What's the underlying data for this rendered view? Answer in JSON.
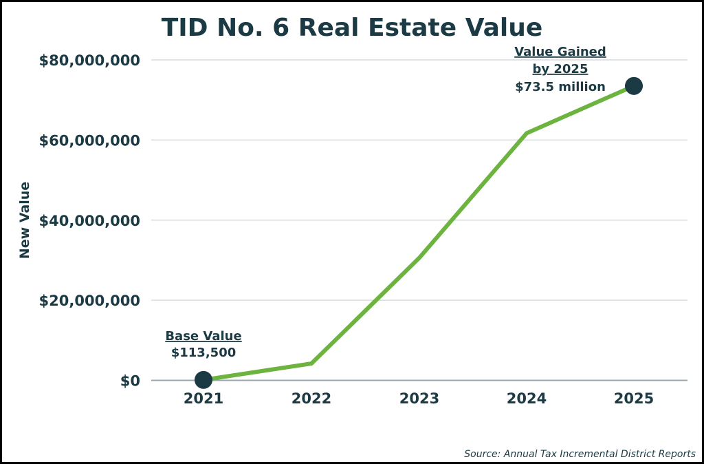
{
  "chart_data": {
    "type": "line",
    "title": "TID No. 6 Real Estate Value",
    "xlabel": "",
    "ylabel": "New Value",
    "categories": [
      "2021",
      "2022",
      "2023",
      "2024",
      "2025"
    ],
    "series": [
      {
        "name": "New Value",
        "values": [
          113500,
          4200000,
          30600000,
          61700000,
          73500000
        ]
      }
    ],
    "ylim": [
      0,
      80000000
    ],
    "yticks": [
      0,
      20000000,
      40000000,
      60000000,
      80000000
    ],
    "ytick_labels": [
      "$0",
      "$20,000,000",
      "$40,000,000",
      "$60,000,000",
      "$80,000,000"
    ],
    "grid": true,
    "annotations": {
      "start": {
        "title": "Base Value",
        "value": "$113,500"
      },
      "end": {
        "title_line1": "Value Gained",
        "title_line2": "by 2025",
        "value": "$73.5 million"
      }
    },
    "source": "Source: Annual Tax Incremental District Reports",
    "colors": {
      "line": "#6db33f",
      "text": "#1b3a44",
      "marker": "#1b3a44",
      "grid": "#d5dcdf"
    }
  }
}
